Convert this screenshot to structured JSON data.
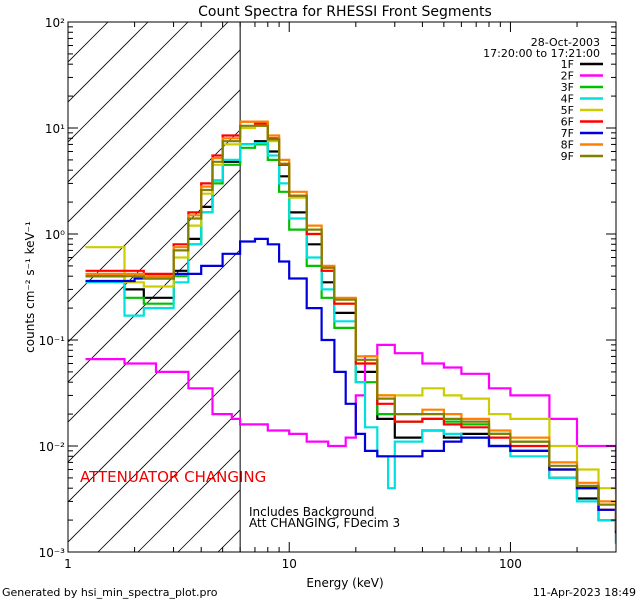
{
  "chart_data": {
    "type": "line",
    "title": "Count Spectra for RHESSI Front Segments",
    "xlabel": "Energy (keV)",
    "ylabel": "counts cm⁻² s⁻¹ keV⁻¹",
    "xscale": "log",
    "yscale": "log",
    "xlim": [
      1,
      300
    ],
    "ylim": [
      0.001,
      100
    ],
    "x_ticks": [
      {
        "value": 1,
        "label": "1"
      },
      {
        "value": 10,
        "label": "10"
      },
      {
        "value": 100,
        "label": "100"
      }
    ],
    "y_ticks": [
      {
        "value": 100,
        "label": "10²"
      },
      {
        "value": 10,
        "label": "10¹"
      },
      {
        "value": 1,
        "label": "10⁰"
      },
      {
        "value": 0.1,
        "label": "10⁻¹"
      },
      {
        "value": 0.01,
        "label": "10⁻²"
      },
      {
        "value": 0.001,
        "label": "10⁻³"
      }
    ],
    "date": "28-Oct-2003",
    "time_range": "17:20:00 to 17:21:00",
    "attenuator_energy": 6,
    "attenuator_label": "ATTENUATOR CHANGING",
    "notes": [
      "Includes Background",
      "Att CHANGING, FDecim 3"
    ],
    "footer_left": "Generated by hsi_min_spectra_plot.pro",
    "footer_right": "11-Apr-2023 18:49",
    "legend": "top-right",
    "series": [
      {
        "name": "1F",
        "color": "#000000",
        "x": [
          1.2,
          1.8,
          2.2,
          3,
          3.5,
          4,
          4.5,
          5,
          6,
          7,
          8,
          9,
          10,
          12,
          14,
          16,
          20,
          25,
          30,
          40,
          50,
          60,
          80,
          100,
          150,
          200,
          250,
          300
        ],
        "y": [
          0.4,
          0.3,
          0.25,
          0.45,
          0.9,
          1.8,
          3.2,
          4.8,
          7.0,
          7.5,
          6.0,
          3.5,
          1.6,
          0.8,
          0.35,
          0.18,
          0.05,
          0.018,
          0.012,
          0.014,
          0.012,
          0.013,
          0.01,
          0.009,
          0.005,
          0.0032,
          0.002,
          0.0012
        ]
      },
      {
        "name": "2F",
        "color": "#ff00ff",
        "x": [
          1.2,
          1.8,
          2.5,
          3.5,
          4.5,
          5.5,
          6,
          8,
          10,
          12,
          15,
          18,
          20,
          22,
          25,
          30,
          40,
          50,
          60,
          80,
          100,
          150,
          200,
          300
        ],
        "y": [
          0.066,
          0.06,
          0.05,
          0.035,
          0.02,
          0.018,
          0.016,
          0.014,
          0.013,
          0.011,
          0.01,
          0.012,
          0.03,
          0.07,
          0.09,
          0.075,
          0.06,
          0.055,
          0.048,
          0.035,
          0.03,
          0.018,
          0.01,
          0.0035
        ]
      },
      {
        "name": "3F",
        "color": "#00c000",
        "x": [
          1.2,
          1.8,
          2.2,
          3,
          3.5,
          4,
          4.5,
          5,
          6,
          7,
          8,
          9,
          10,
          12,
          14,
          16,
          20,
          25,
          30,
          40,
          50,
          60,
          80,
          100,
          150,
          200,
          250,
          300
        ],
        "y": [
          0.4,
          0.25,
          0.22,
          0.4,
          0.8,
          1.6,
          3.0,
          4.5,
          6.5,
          7.0,
          5.0,
          2.5,
          1.1,
          0.5,
          0.25,
          0.13,
          0.04,
          0.02,
          0.017,
          0.018,
          0.017,
          0.016,
          0.013,
          0.011,
          0.006,
          0.004,
          0.0025,
          0.0015
        ]
      },
      {
        "name": "4F",
        "color": "#00e0e0",
        "x": [
          1.2,
          1.8,
          2.2,
          3,
          3.5,
          4,
          4.5,
          5,
          6,
          7,
          8,
          9,
          10,
          12,
          14,
          16,
          20,
          22,
          25,
          28,
          30,
          40,
          50,
          60,
          80,
          100,
          150,
          200,
          250,
          300
        ],
        "y": [
          0.35,
          0.17,
          0.2,
          0.35,
          0.8,
          1.6,
          3.2,
          5.0,
          7.0,
          7.2,
          5.5,
          3.0,
          1.4,
          0.6,
          0.3,
          0.15,
          0.04,
          0.015,
          0.008,
          0.004,
          0.011,
          0.014,
          0.013,
          0.012,
          0.01,
          0.008,
          0.005,
          0.003,
          0.002,
          0.0012
        ]
      },
      {
        "name": "5F",
        "color": "#cccc00",
        "x": [
          1.2,
          1.8,
          2.2,
          3,
          3.5,
          4,
          4.5,
          5,
          6,
          7,
          8,
          9,
          10,
          12,
          14,
          16,
          20,
          25,
          30,
          40,
          50,
          60,
          80,
          100,
          150,
          200,
          250,
          300
        ],
        "y": [
          0.75,
          0.35,
          0.32,
          0.6,
          1.2,
          2.4,
          4.5,
          7.0,
          10.0,
          10.5,
          7.5,
          4.5,
          2.2,
          1.0,
          0.45,
          0.22,
          0.06,
          0.03,
          0.03,
          0.035,
          0.03,
          0.028,
          0.02,
          0.018,
          0.01,
          0.006,
          0.004,
          0.002
        ]
      },
      {
        "name": "6F",
        "color": "#ff0000",
        "x": [
          1.2,
          1.8,
          2.2,
          3,
          3.5,
          4,
          4.5,
          5,
          6,
          7,
          8,
          9,
          10,
          12,
          14,
          16,
          20,
          25,
          30,
          40,
          50,
          60,
          80,
          100,
          150,
          200,
          250,
          300
        ],
        "y": [
          0.45,
          0.45,
          0.42,
          0.8,
          1.6,
          3.0,
          5.5,
          8.5,
          11.5,
          11.0,
          8.0,
          4.5,
          2.3,
          1.0,
          0.45,
          0.22,
          0.06,
          0.025,
          0.017,
          0.018,
          0.016,
          0.015,
          0.012,
          0.01,
          0.006,
          0.004,
          0.0025,
          0.0015
        ]
      },
      {
        "name": "7F",
        "color": "#0000dd",
        "x": [
          1.2,
          2,
          3,
          4,
          5,
          6,
          7,
          8,
          9,
          10,
          12,
          14,
          16,
          18,
          20,
          22,
          25,
          30,
          40,
          50,
          60,
          80,
          100,
          150,
          200,
          250,
          300
        ],
        "y": [
          0.36,
          0.38,
          0.42,
          0.5,
          0.65,
          0.85,
          0.9,
          0.8,
          0.55,
          0.38,
          0.2,
          0.1,
          0.05,
          0.025,
          0.013,
          0.009,
          0.008,
          0.008,
          0.009,
          0.011,
          0.012,
          0.01,
          0.009,
          0.006,
          0.004,
          0.0025,
          0.0015
        ]
      },
      {
        "name": "8F",
        "color": "#ff8000",
        "x": [
          1.2,
          1.8,
          2.2,
          3,
          3.5,
          4,
          4.5,
          5,
          6,
          7,
          8,
          9,
          10,
          12,
          14,
          16,
          20,
          25,
          30,
          40,
          50,
          60,
          80,
          100,
          150,
          200,
          250,
          300
        ],
        "y": [
          0.42,
          0.42,
          0.4,
          0.75,
          1.5,
          2.8,
          5.2,
          8.0,
          11.5,
          11.5,
          8.5,
          5.0,
          2.5,
          1.2,
          0.5,
          0.25,
          0.07,
          0.03,
          0.02,
          0.022,
          0.02,
          0.018,
          0.014,
          0.012,
          0.007,
          0.0045,
          0.003,
          0.0018
        ]
      },
      {
        "name": "9F",
        "color": "#808000",
        "x": [
          1.2,
          1.8,
          2.2,
          3,
          3.5,
          4,
          4.5,
          5,
          6,
          7,
          8,
          9,
          10,
          12,
          14,
          16,
          20,
          25,
          30,
          40,
          50,
          60,
          80,
          100,
          150,
          200,
          250,
          300
        ],
        "y": [
          0.4,
          0.4,
          0.38,
          0.7,
          1.4,
          2.6,
          4.8,
          7.5,
          10.5,
          10.5,
          7.8,
          4.6,
          2.3,
          1.1,
          0.48,
          0.24,
          0.065,
          0.028,
          0.02,
          0.02,
          0.018,
          0.017,
          0.013,
          0.011,
          0.0065,
          0.0042,
          0.0028,
          0.0016
        ]
      }
    ]
  }
}
